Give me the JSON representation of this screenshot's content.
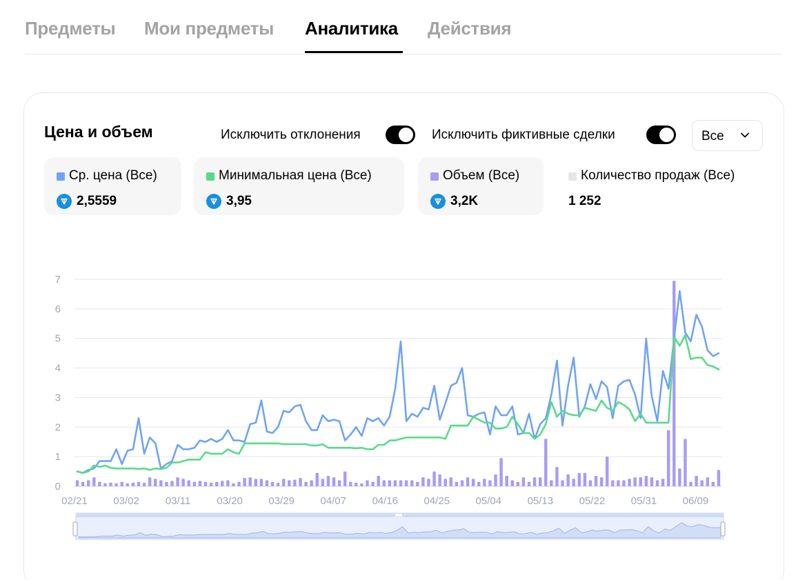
{
  "tabs": [
    {
      "label": "Предметы",
      "active": false
    },
    {
      "label": "Мои предметы",
      "active": false
    },
    {
      "label": "Аналитика",
      "active": true
    },
    {
      "label": "Действия",
      "active": false
    }
  ],
  "card": {
    "title": "Цена и объем",
    "toggles": [
      {
        "label": "Исключить отклонения",
        "on": true
      },
      {
        "label": "Исключить фиктивные сделки",
        "on": true
      }
    ],
    "period_select": {
      "value": "Все",
      "icon": "chevron-down-icon"
    }
  },
  "stats": [
    {
      "label": "Ср. цена (Все)",
      "value": "2,5559",
      "color": "#6fa3f5",
      "icon": "ton-coin-icon"
    },
    {
      "label": "Минимальная цена (Все)",
      "value": "3,95",
      "color": "#5bd98a",
      "icon": "ton-coin-icon"
    },
    {
      "label": "Объем (Все)",
      "value": "3,2K",
      "color": "#a89cf5",
      "icon": "ton-coin-icon"
    },
    {
      "label": "Количество продаж (Все)",
      "value": "1 252",
      "color": "#e6e6e6"
    }
  ],
  "chart_data": {
    "type": "line",
    "ylim": [
      0,
      7
    ],
    "yticks": [
      0,
      1,
      2,
      3,
      4,
      5,
      6,
      7
    ],
    "xticks": [
      "02/21",
      "03/02",
      "03/11",
      "03/20",
      "03/29",
      "04/07",
      "04/16",
      "04/25",
      "05/04",
      "05/13",
      "05/22",
      "05/31",
      "06/09"
    ],
    "grid": true,
    "colors": {
      "avg": "#6fa3f5",
      "min": "#5bd98a",
      "volume": "#a89cf5"
    },
    "series": [
      {
        "key": "avg",
        "kind": "line",
        "values": [
          0.5,
          0.45,
          0.55,
          0.6,
          0.85,
          0.85,
          0.85,
          1.25,
          0.75,
          1.2,
          1.25,
          2.3,
          1.1,
          1.65,
          1.45,
          0.6,
          0.75,
          0.85,
          1.4,
          1.25,
          1.25,
          1.3,
          1.55,
          1.5,
          1.6,
          1.5,
          1.6,
          1.9,
          1.55,
          1.55,
          1.5,
          2.1,
          2.15,
          2.9,
          1.85,
          1.8,
          2.0,
          2.55,
          2.5,
          2.7,
          2.75,
          2.2,
          1.9,
          1.9,
          2.4,
          2.2,
          2.25,
          2.2,
          1.55,
          1.75,
          2.0,
          1.7,
          2.3,
          2.2,
          2.3,
          2.05,
          2.35,
          3.3,
          4.9,
          2.2,
          2.45,
          2.35,
          2.65,
          2.6,
          3.4,
          2.25,
          2.8,
          3.4,
          3.5,
          4.0,
          2.4,
          2.35,
          2.45,
          2.5,
          1.75,
          2.7,
          2.4,
          2.4,
          2.7,
          1.75,
          1.8,
          2.45,
          1.6,
          2.1,
          2.3,
          3.1,
          4.25,
          2.05,
          3.4,
          4.35,
          2.35,
          2.7,
          3.45,
          2.95,
          3.55,
          3.35,
          2.3,
          3.4,
          3.55,
          3.6,
          3.1,
          2.3,
          5.0,
          3.05,
          2.2,
          3.9,
          3.3,
          5.0,
          6.6,
          5.2,
          4.9,
          5.8,
          5.4,
          4.6,
          4.4,
          4.5
        ]
      },
      {
        "key": "min",
        "kind": "line",
        "values": [
          0.5,
          0.45,
          0.5,
          0.7,
          0.65,
          0.7,
          0.62,
          0.6,
          0.6,
          0.6,
          0.6,
          0.58,
          0.6,
          0.55,
          0.6,
          0.58,
          0.62,
          0.8,
          0.8,
          0.85,
          0.9,
          0.9,
          0.9,
          1.15,
          1.1,
          1.1,
          1.1,
          1.25,
          1.15,
          1.1,
          1.45,
          1.45,
          1.45,
          1.45,
          1.45,
          1.45,
          1.45,
          1.42,
          1.42,
          1.42,
          1.42,
          1.42,
          1.38,
          1.38,
          1.42,
          1.3,
          1.3,
          1.3,
          1.3,
          1.3,
          1.28,
          1.3,
          1.25,
          1.25,
          1.4,
          1.4,
          1.55,
          1.55,
          1.6,
          1.65,
          1.65,
          1.65,
          1.65,
          1.65,
          1.65,
          1.65,
          1.6,
          2.05,
          2.05,
          2.05,
          2.05,
          2.35,
          2.25,
          2.15,
          2.15,
          1.95,
          1.95,
          2.0,
          2.35,
          2.1,
          1.8,
          1.8,
          1.6,
          1.75,
          2.1,
          2.85,
          2.35,
          2.55,
          2.45,
          2.4,
          2.4,
          2.65,
          2.6,
          2.55,
          2.9,
          2.65,
          2.55,
          2.85,
          2.75,
          2.6,
          2.2,
          2.45,
          2.15,
          2.15,
          2.15,
          2.15,
          2.15,
          5.05,
          4.75,
          5.1,
          4.3,
          4.35,
          4.35,
          4.1,
          4.05,
          3.95
        ]
      },
      {
        "key": "volume",
        "kind": "bar",
        "values": [
          0.2,
          0.15,
          0.2,
          0.3,
          0.15,
          0.1,
          0.12,
          0.1,
          0.15,
          0.1,
          0.12,
          0.15,
          0.12,
          0.3,
          0.25,
          0.2,
          0.15,
          0.18,
          0.3,
          0.25,
          0.2,
          0.15,
          0.18,
          0.15,
          0.12,
          0.15,
          0.18,
          0.2,
          0.1,
          0.15,
          0.28,
          0.3,
          0.25,
          0.25,
          0.2,
          0.15,
          0.12,
          0.25,
          0.2,
          0.22,
          0.28,
          0.15,
          0.2,
          0.45,
          0.25,
          0.35,
          0.3,
          0.2,
          0.5,
          0.15,
          0.12,
          0.1,
          0.2,
          0.15,
          0.35,
          0.2,
          0.2,
          0.2,
          0.2,
          0.2,
          0.2,
          0.15,
          0.3,
          0.25,
          0.5,
          0.4,
          0.25,
          0.3,
          0.15,
          0.2,
          0.3,
          0.25,
          0.15,
          0.25,
          0.2,
          0.4,
          0.95,
          0.35,
          0.2,
          0.15,
          0.3,
          0.15,
          0.3,
          0.3,
          1.6,
          0.2,
          0.65,
          0.2,
          0.4,
          0.25,
          0.45,
          0.45,
          0.2,
          0.35,
          0.3,
          1.0,
          0.2,
          0.2,
          0.2,
          0.25,
          0.3,
          0.3,
          0.35,
          0.3,
          0.2,
          0.25,
          1.9,
          6.95,
          0.6,
          1.6,
          0.15,
          0.35,
          0.2,
          0.3,
          0.15,
          0.55
        ]
      }
    ]
  }
}
